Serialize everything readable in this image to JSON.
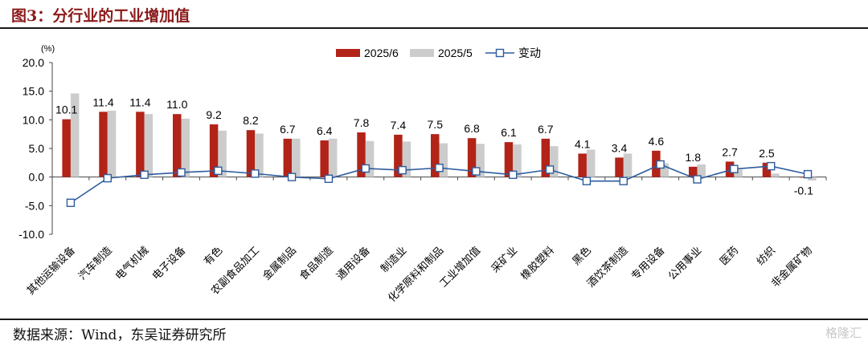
{
  "figure_title": "图3：分行业的工业增加值",
  "source": "数据来源：Wind，东吴证券研究所",
  "watermark": "格隆汇",
  "chart_data": {
    "type": "bar",
    "y_unit_label": "(%)",
    "ylim": [
      -10,
      20
    ],
    "yticks": [
      -10.0,
      -5.0,
      0.0,
      5.0,
      10.0,
      15.0,
      20.0
    ],
    "legend_position": "top-center",
    "categories": [
      "其他运输设备",
      "汽车制造",
      "电气机械",
      "电子设备",
      "有色",
      "农副食品加工",
      "金属制品",
      "食品制造",
      "通用设备",
      "制造业",
      "化学原料和制品",
      "工业增加值",
      "采矿业",
      "橡胶塑料",
      "黑色",
      "酒饮茶制造",
      "专用设备",
      "公用事业",
      "医药",
      "纺织",
      "非金属矿物"
    ],
    "series": [
      {
        "name": "2025/6",
        "kind": "bar",
        "color": "#b22318",
        "values": [
          10.1,
          11.4,
          11.4,
          11.0,
          9.2,
          8.2,
          6.7,
          6.4,
          7.8,
          7.4,
          7.5,
          6.8,
          6.1,
          6.7,
          4.1,
          3.4,
          4.6,
          1.8,
          2.7,
          2.5,
          -0.1
        ],
        "labels": [
          "10.1",
          "11.4",
          "11.4",
          "11.0",
          "9.2",
          "8.2",
          "6.7",
          "6.4",
          "7.8",
          "7.4",
          "7.5",
          "6.8",
          "6.1",
          "6.7",
          "4.1",
          "3.4",
          "4.6",
          "1.8",
          "2.7",
          "2.5",
          "-0.1"
        ]
      },
      {
        "name": "2025/5",
        "kind": "bar",
        "color": "#cccccc",
        "values": [
          14.6,
          11.6,
          11.0,
          10.2,
          8.1,
          7.6,
          6.7,
          6.7,
          6.3,
          6.2,
          5.9,
          5.8,
          5.7,
          5.4,
          4.8,
          4.1,
          2.4,
          2.2,
          1.3,
          0.6,
          -0.6
        ]
      },
      {
        "name": "变动",
        "kind": "line",
        "color": "#2e5c9e",
        "values": [
          -4.5,
          -0.2,
          0.4,
          0.8,
          1.1,
          0.6,
          0.0,
          -0.3,
          1.5,
          1.2,
          1.6,
          1.0,
          0.4,
          1.3,
          -0.7,
          -0.7,
          2.2,
          -0.4,
          1.4,
          1.9,
          0.5
        ]
      }
    ]
  }
}
